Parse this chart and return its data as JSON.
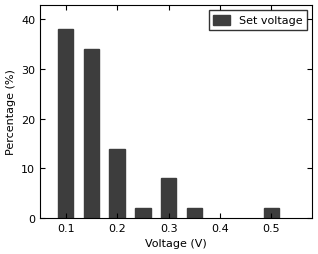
{
  "bar_centers": [
    0.1,
    0.15,
    0.2,
    0.25,
    0.3,
    0.35,
    0.5
  ],
  "bar_heights": [
    38,
    34,
    14,
    2,
    8,
    2,
    2
  ],
  "bar_width": 0.03,
  "bar_color": "#3d3d3d",
  "xlabel": "Voltage (V)",
  "ylabel": "Percentage (%)",
  "xlim": [
    0.05,
    0.58
  ],
  "ylim": [
    0,
    43
  ],
  "xticks": [
    0.1,
    0.2,
    0.3,
    0.4,
    0.5
  ],
  "yticks": [
    0,
    10,
    20,
    30,
    40
  ],
  "legend_label": "Set voltage",
  "legend_color": "#3d3d3d",
  "axis_fontsize": 8,
  "tick_fontsize": 8,
  "legend_fontsize": 8
}
